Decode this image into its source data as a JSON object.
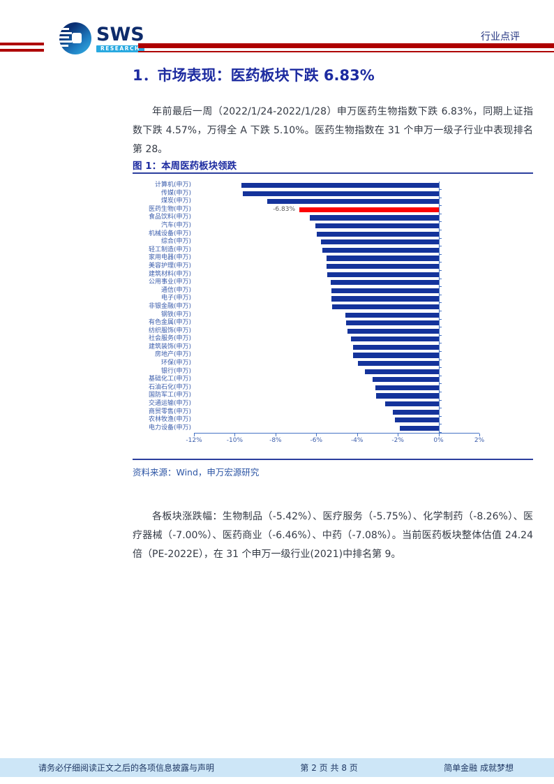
{
  "header": {
    "logo_text": "SWS",
    "logo_sub": "RESEARCH",
    "doc_type": "行业点评"
  },
  "section": {
    "title": "1．市场表现：医药板块下跌 6.83%",
    "paragraph1": "年前最后一周（2022/1/24-2022/1/28）申万医药生物指数下跌 6.83%，同期上证指数下跌 4.57%，万得全 A 下跌 5.10%。医药生物指数在 31 个申万一级子行业中表现排名第 28。",
    "paragraph2": "各板块涨跌幅：生物制品（-5.42%）、医疗服务（-5.75%）、化学制药（-8.26%）、医疗器械（-7.00%）、医药商业（-6.46%）、中药（-7.08%）。当前医药板块整体估值 24.24 倍（PE-2022E），在 31 个申万一级行业(2021)中排名第 9。"
  },
  "figure": {
    "caption": "图 1：本周医药板块领跌",
    "source": "资料来源：Wind，申万宏源研究"
  },
  "chart_data": {
    "type": "bar",
    "orientation": "horizontal",
    "title": "本周医药板块领跌",
    "categories": [
      "计算机(申万)",
      "传媒(申万)",
      "煤炭(申万)",
      "医药生物(申万)",
      "食品饮料(申万)",
      "汽车(申万)",
      "机械设备(申万)",
      "综合(申万)",
      "轻工制造(申万)",
      "家用电器(申万)",
      "美容护理(申万)",
      "建筑材料(申万)",
      "公用事业(申万)",
      "通信(申万)",
      "电子(申万)",
      "非银金融(申万)",
      "钢铁(申万)",
      "有色金属(申万)",
      "纺织服饰(申万)",
      "社会服务(申万)",
      "建筑装饰(申万)",
      "房地产(申万)",
      "环保(申万)",
      "银行(申万)",
      "基础化工(申万)",
      "石油石化(申万)",
      "国防军工(申万)",
      "交通运输(申万)",
      "商贸零售(申万)",
      "农林牧渔(申万)",
      "电力设备(申万)"
    ],
    "values": [
      -9.66,
      -9.6,
      -8.42,
      -6.83,
      -6.33,
      -6.06,
      -5.98,
      -5.77,
      -5.7,
      -5.5,
      -5.49,
      -5.46,
      -5.28,
      -5.26,
      -5.24,
      -5.22,
      -4.57,
      -4.55,
      -4.47,
      -4.3,
      -4.2,
      -4.19,
      -3.95,
      -3.63,
      -3.25,
      -3.1,
      -3.08,
      -2.63,
      -2.23,
      -2.15,
      -1.89
    ],
    "highlight_index": 3,
    "highlight_label": "-6.83%",
    "bar_color": "#14339b",
    "highlight_color": "#fc0204",
    "xlim": [
      -12,
      2
    ],
    "x_ticks": [
      "-12%",
      "-10%",
      "-8%",
      "-6%",
      "-4%",
      "-2%",
      "0%",
      "2%"
    ],
    "grid": false,
    "legend": false
  },
  "footer": {
    "disclaimer": "请务必仔细阅读正文之后的各项信息披露与声明",
    "page_info": "第 2 页 共 8 页",
    "slogan": "简单金融 成就梦想"
  },
  "colors": {
    "rule_red": "#ae0000",
    "heading_blue": "#1d2ba0",
    "bar_blue": "#14339b",
    "highlight_red": "#fc0204",
    "axis_blue": "#4472c4",
    "chart_label_blue": "#3c5eac",
    "footer_bg": "#cde6f7",
    "footer_text": "#1f3864"
  }
}
